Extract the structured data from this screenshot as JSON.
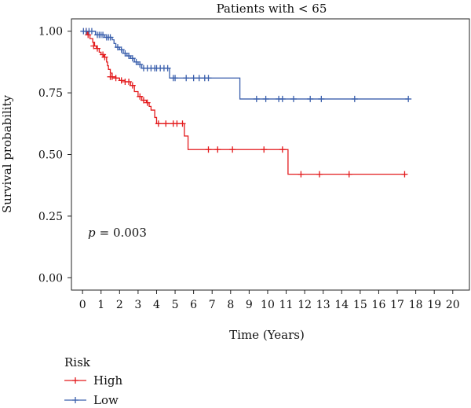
{
  "chart_data": {
    "type": "line",
    "title": "Patients with < 65",
    "xlabel": "Time (Years)",
    "ylabel": "Survival probability",
    "xlim": [
      -0.6,
      20.9
    ],
    "ylim": [
      -0.05,
      1.05
    ],
    "xticks": [
      "0",
      "1",
      "2",
      "3",
      "4",
      "5",
      "6",
      "7",
      "8",
      "9",
      "10",
      "11",
      "12",
      "13",
      "14",
      "15",
      "16",
      "17",
      "18",
      "19",
      "20"
    ],
    "yticks": [
      "0.00",
      "0.25",
      "0.50",
      "0.75",
      "1.00"
    ],
    "annotation": {
      "p_label": "p",
      "p_value": "= 0.003"
    },
    "legend": {
      "title": "Risk",
      "position": "bottom-left"
    },
    "series": [
      {
        "name": "High",
        "color": "#e31a1c",
        "steps": [
          [
            0,
            1.0
          ],
          [
            0.25,
            0.985
          ],
          [
            0.4,
            0.97
          ],
          [
            0.55,
            0.955
          ],
          [
            0.65,
            0.94
          ],
          [
            0.75,
            0.93
          ],
          [
            0.9,
            0.915
          ],
          [
            1.0,
            0.905
          ],
          [
            1.15,
            0.895
          ],
          [
            1.3,
            0.875
          ],
          [
            1.35,
            0.86
          ],
          [
            1.4,
            0.845
          ],
          [
            1.5,
            0.83
          ],
          [
            1.6,
            0.815
          ],
          [
            1.8,
            0.81
          ],
          [
            2.0,
            0.8
          ],
          [
            2.3,
            0.795
          ],
          [
            2.6,
            0.78
          ],
          [
            2.8,
            0.755
          ],
          [
            3.0,
            0.735
          ],
          [
            3.2,
            0.72
          ],
          [
            3.45,
            0.71
          ],
          [
            3.6,
            0.695
          ],
          [
            3.7,
            0.68
          ],
          [
            3.9,
            0.65
          ],
          [
            4.0,
            0.625
          ],
          [
            5.5,
            0.575
          ],
          [
            5.7,
            0.52
          ],
          [
            11.1,
            0.42
          ]
        ],
        "end": 17.5,
        "censored": [
          [
            0.2,
            1.0
          ],
          [
            0.3,
            0.985
          ],
          [
            0.6,
            0.94
          ],
          [
            0.8,
            0.93
          ],
          [
            1.1,
            0.905
          ],
          [
            1.2,
            0.895
          ],
          [
            1.5,
            0.815
          ],
          [
            1.6,
            0.815
          ],
          [
            1.8,
            0.81
          ],
          [
            2.1,
            0.8
          ],
          [
            2.3,
            0.795
          ],
          [
            2.5,
            0.795
          ],
          [
            2.7,
            0.78
          ],
          [
            3.1,
            0.735
          ],
          [
            3.3,
            0.72
          ],
          [
            3.5,
            0.71
          ],
          [
            4.1,
            0.625
          ],
          [
            4.5,
            0.625
          ],
          [
            4.9,
            0.625
          ],
          [
            5.1,
            0.625
          ],
          [
            5.4,
            0.625
          ],
          [
            6.8,
            0.52
          ],
          [
            7.3,
            0.52
          ],
          [
            8.1,
            0.52
          ],
          [
            9.8,
            0.52
          ],
          [
            10.8,
            0.52
          ],
          [
            11.8,
            0.42
          ],
          [
            12.8,
            0.42
          ],
          [
            14.4,
            0.42
          ],
          [
            17.4,
            0.42
          ]
        ]
      },
      {
        "name": "Low",
        "color": "#3a5fac",
        "steps": [
          [
            0,
            1.0
          ],
          [
            0.7,
            0.985
          ],
          [
            1.2,
            0.975
          ],
          [
            1.6,
            0.965
          ],
          [
            1.7,
            0.95
          ],
          [
            1.8,
            0.935
          ],
          [
            2.0,
            0.925
          ],
          [
            2.2,
            0.91
          ],
          [
            2.4,
            0.9
          ],
          [
            2.6,
            0.89
          ],
          [
            2.8,
            0.875
          ],
          [
            3.0,
            0.865
          ],
          [
            3.2,
            0.85
          ],
          [
            4.7,
            0.81
          ],
          [
            8.5,
            0.725
          ]
        ],
        "end": 17.6,
        "censored": [
          [
            0.05,
            1.0
          ],
          [
            0.2,
            1.0
          ],
          [
            0.35,
            1.0
          ],
          [
            0.5,
            1.0
          ],
          [
            0.8,
            0.985
          ],
          [
            0.9,
            0.985
          ],
          [
            1.0,
            0.985
          ],
          [
            1.1,
            0.985
          ],
          [
            1.3,
            0.975
          ],
          [
            1.4,
            0.975
          ],
          [
            1.5,
            0.975
          ],
          [
            1.9,
            0.935
          ],
          [
            2.1,
            0.925
          ],
          [
            2.3,
            0.91
          ],
          [
            2.5,
            0.9
          ],
          [
            2.7,
            0.89
          ],
          [
            2.9,
            0.875
          ],
          [
            3.1,
            0.865
          ],
          [
            3.3,
            0.85
          ],
          [
            3.5,
            0.85
          ],
          [
            3.7,
            0.85
          ],
          [
            3.9,
            0.85
          ],
          [
            4.0,
            0.85
          ],
          [
            4.2,
            0.85
          ],
          [
            4.4,
            0.85
          ],
          [
            4.6,
            0.85
          ],
          [
            4.9,
            0.81
          ],
          [
            5.0,
            0.81
          ],
          [
            5.6,
            0.81
          ],
          [
            6.0,
            0.81
          ],
          [
            6.3,
            0.81
          ],
          [
            6.6,
            0.81
          ],
          [
            6.8,
            0.81
          ],
          [
            9.4,
            0.725
          ],
          [
            9.9,
            0.725
          ],
          [
            10.6,
            0.725
          ],
          [
            10.8,
            0.725
          ],
          [
            11.4,
            0.725
          ],
          [
            12.3,
            0.725
          ],
          [
            12.9,
            0.725
          ],
          [
            14.7,
            0.725
          ],
          [
            17.6,
            0.725
          ]
        ]
      }
    ]
  }
}
